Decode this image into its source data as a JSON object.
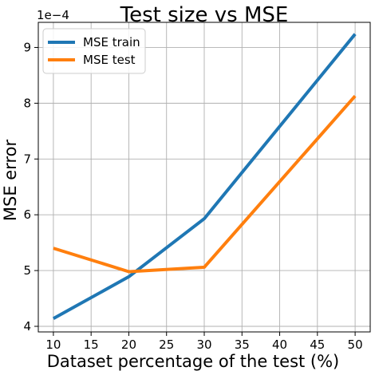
{
  "chart_data": {
    "type": "line",
    "title": "Test size vs MSE",
    "xlabel": "Dataset percentage of the test (%)",
    "ylabel": "MSE error",
    "y_offset_text": "1e−4",
    "y_scale_factor": 0.0001,
    "x": [
      10,
      20,
      30,
      50
    ],
    "series": [
      {
        "name": "MSE train",
        "color": "#1f77b4",
        "values": [
          4.14,
          4.89,
          5.93,
          9.24
        ]
      },
      {
        "name": "MSE test",
        "color": "#ff7f0e",
        "values": [
          5.4,
          4.98,
          5.06,
          8.13
        ]
      }
    ],
    "xlim": [
      8.0,
      52.0
    ],
    "ylim": [
      3.9,
      9.45
    ],
    "xticks": [
      10,
      15,
      20,
      25,
      30,
      35,
      40,
      45,
      50
    ],
    "yticks": [
      4,
      5,
      6,
      7,
      8,
      9
    ],
    "grid": true,
    "legend_position": "upper left"
  }
}
